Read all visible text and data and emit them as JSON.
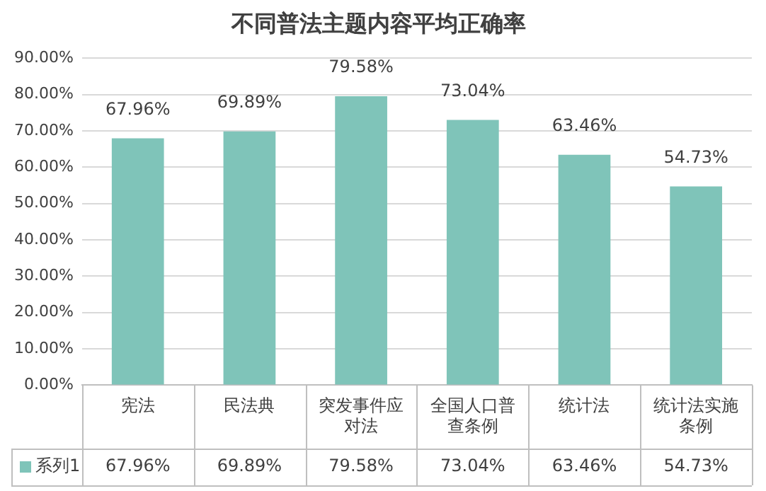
{
  "chart_data": {
    "type": "bar",
    "title": "不同普法主题内容平均正确率",
    "categories": [
      "宪法",
      "民法典",
      "突发事件应对法",
      "全国人口普查条例",
      "统计法",
      "统计法实施条例"
    ],
    "series": [
      {
        "name": "系列1",
        "color": "#7fc4b9",
        "values": [
          67.96,
          69.89,
          79.58,
          73.04,
          63.46,
          54.73
        ],
        "value_labels": [
          "67.96%",
          "69.89%",
          "79.58%",
          "73.04%",
          "63.46%",
          "54.73%"
        ]
      }
    ],
    "ylim": [
      0,
      90
    ],
    "yticks": [
      {
        "value": 0,
        "label": "0.00%"
      },
      {
        "value": 10,
        "label": "10.00%"
      },
      {
        "value": 20,
        "label": "20.00%"
      },
      {
        "value": 30,
        "label": "30.00%"
      },
      {
        "value": 40,
        "label": "40.00%"
      },
      {
        "value": 50,
        "label": "50.00%"
      },
      {
        "value": 60,
        "label": "60.00%"
      },
      {
        "value": 70,
        "label": "70.00%"
      },
      {
        "value": 80,
        "label": "80.00%"
      },
      {
        "value": 90,
        "label": "90.00%"
      }
    ],
    "grid": "y",
    "legend": "bottom"
  }
}
